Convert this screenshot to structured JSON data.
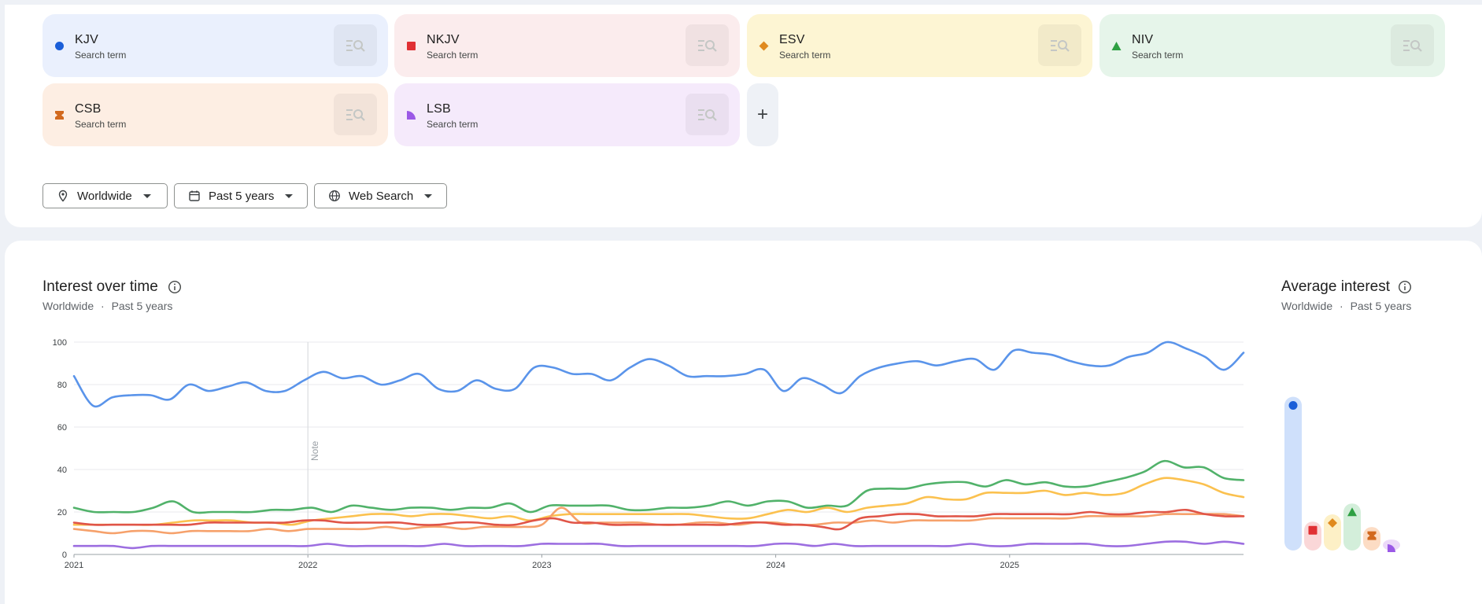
{
  "terms": [
    {
      "name": "KJV",
      "sub": "Search term",
      "color": "#1a5ed8",
      "bg": "#eaf0fd",
      "marker": "circle"
    },
    {
      "name": "NKJV",
      "sub": "Search term",
      "color": "#e03034",
      "bg": "#fbeced",
      "marker": "square"
    },
    {
      "name": "ESV",
      "sub": "Search term",
      "color": "#e08a1e",
      "bg": "#fdf5d3",
      "marker": "diamond"
    },
    {
      "name": "NIV",
      "sub": "Search term",
      "color": "#2ea043",
      "bg": "#e6f5ea",
      "marker": "triangle"
    },
    {
      "name": "CSB",
      "sub": "Search term",
      "color": "#d2691e",
      "bg": "#fdeee3",
      "marker": "bowtie"
    },
    {
      "name": "LSB",
      "sub": "Search term",
      "color": "#9b59e6",
      "bg": "#f5eafb",
      "marker": "quarter"
    }
  ],
  "add_label": "+",
  "filters": {
    "region": "Worldwide",
    "period": "Past 5 years",
    "source": "Web Search"
  },
  "interest": {
    "title": "Interest over time",
    "region": "Worldwide",
    "separator": "·",
    "period": "Past 5 years",
    "note_label": "Note"
  },
  "average": {
    "title": "Average interest",
    "region": "Worldwide",
    "separator": "·",
    "period": "Past 5 years",
    "values": [
      85,
      16,
      20,
      26,
      13,
      5
    ],
    "colors": [
      "#1a5ed8",
      "#e03034",
      "#e08a1e",
      "#2ea043",
      "#d2691e",
      "#9b59e6"
    ],
    "bar_bg": [
      "#cfe0fb",
      "#fad7d8",
      "#fdf0c6",
      "#d3eeda",
      "#fcdcc4",
      "#ecd9f9"
    ]
  },
  "chart_data": {
    "type": "line",
    "x_ticks": [
      "2021",
      "2022",
      "2023",
      "2024",
      "2025"
    ],
    "y_ticks": [
      "0",
      "20",
      "40",
      "60",
      "80",
      "100"
    ],
    "ylim": [
      0,
      100
    ],
    "x_start": "2021-01",
    "x_end": "2025-12",
    "series": [
      {
        "name": "KJV",
        "color": "#5a94ea",
        "values": [
          84,
          70,
          74,
          75,
          75,
          73,
          80,
          77,
          79,
          81,
          77,
          77,
          82,
          86,
          83,
          84,
          80,
          82,
          85,
          78,
          77,
          82,
          78,
          78,
          88,
          88,
          85,
          85,
          82,
          88,
          92,
          89,
          84,
          84,
          84,
          85,
          87,
          77,
          83,
          80,
          76,
          84,
          88,
          90,
          91,
          89,
          91,
          92,
          87,
          96,
          95,
          94,
          91,
          89,
          89,
          93,
          95,
          100,
          97,
          93,
          87,
          95
        ]
      },
      {
        "name": "NIV",
        "color": "#51b26a",
        "values": [
          22,
          20,
          20,
          20,
          22,
          25,
          20,
          20,
          20,
          20,
          21,
          21,
          22,
          20,
          23,
          22,
          21,
          22,
          22,
          21,
          22,
          22,
          24,
          20,
          23,
          23,
          23,
          23,
          21,
          21,
          22,
          22,
          23,
          25,
          23,
          25,
          25,
          22,
          23,
          23,
          30,
          31,
          31,
          33,
          34,
          34,
          32,
          35,
          33,
          34,
          32,
          32,
          34,
          36,
          39,
          44,
          41,
          41,
          36,
          35
        ]
      },
      {
        "name": "ESV",
        "color": "#fbc14f",
        "values": [
          14,
          14,
          14,
          14,
          14,
          15,
          16,
          16,
          16,
          15,
          15,
          14,
          16,
          17,
          18,
          19,
          19,
          18,
          19,
          19,
          18,
          17,
          18,
          16,
          18,
          19,
          19,
          19,
          19,
          19,
          19,
          19,
          18,
          17,
          17,
          19,
          21,
          20,
          22,
          20,
          22,
          23,
          24,
          27,
          26,
          26,
          29,
          29,
          29,
          30,
          28,
          29,
          28,
          29,
          33,
          36,
          35,
          33,
          29,
          27
        ]
      },
      {
        "name": "CSB",
        "color": "#f6a16b",
        "values": [
          12,
          11,
          10,
          11,
          11,
          10,
          11,
          11,
          11,
          11,
          12,
          11,
          12,
          12,
          12,
          12,
          13,
          12,
          13,
          13,
          12,
          13,
          13,
          13,
          14,
          22,
          15,
          15,
          15,
          15,
          14,
          14,
          15,
          15,
          14,
          15,
          15,
          14,
          14,
          15,
          15,
          16,
          15,
          16,
          16,
          16,
          16,
          17,
          17,
          17,
          17,
          17,
          18,
          18,
          18,
          18,
          19,
          19,
          19,
          19,
          18
        ]
      },
      {
        "name": "NKJV",
        "color": "#e05548",
        "values": [
          15,
          14,
          14,
          14,
          14,
          14,
          14,
          15,
          15,
          15,
          15,
          15,
          16,
          16,
          15,
          15,
          15,
          15,
          14,
          14,
          15,
          15,
          14,
          14,
          16,
          17,
          15,
          15,
          14,
          14,
          14,
          14,
          14,
          14,
          14,
          15,
          15,
          14,
          14,
          13,
          12,
          17,
          18,
          19,
          19,
          18,
          18,
          18,
          19,
          19,
          19,
          19,
          19,
          20,
          19,
          19,
          20,
          20,
          21,
          19,
          18,
          18
        ]
      },
      {
        "name": "LSB",
        "color": "#9c6ee0",
        "values": [
          4,
          4,
          4,
          3,
          4,
          4,
          4,
          4,
          4,
          4,
          4,
          4,
          4,
          5,
          4,
          4,
          4,
          4,
          4,
          5,
          4,
          4,
          4,
          4,
          5,
          5,
          5,
          5,
          4,
          4,
          4,
          4,
          4,
          4,
          4,
          4,
          5,
          5,
          4,
          5,
          4,
          4,
          4,
          4,
          4,
          4,
          5,
          4,
          4,
          5,
          5,
          5,
          5,
          4,
          4,
          5,
          6,
          6,
          5,
          6,
          5
        ]
      }
    ]
  }
}
